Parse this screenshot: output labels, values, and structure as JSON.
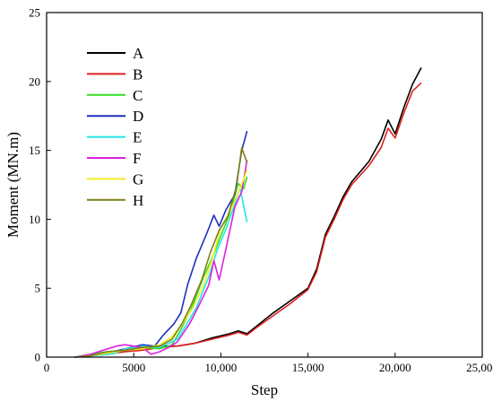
{
  "chart_data": {
    "type": "line",
    "title": "",
    "xlabel": "Step",
    "ylabel": "Moment (MN.m)",
    "xlim": [
      0,
      25000
    ],
    "ylim": [
      0,
      25
    ],
    "x_ticks": [
      0,
      5000,
      10000,
      15000,
      20000,
      25000
    ],
    "x_tick_labels": [
      "0",
      "5000",
      "10,000",
      "15,000",
      "20,000",
      "25,000"
    ],
    "y_ticks": [
      0,
      5,
      10,
      15,
      20,
      25
    ],
    "y_tick_labels": [
      "0",
      "5",
      "10",
      "15",
      "20",
      "25"
    ],
    "grid": false,
    "legend_position": "top-left",
    "series": [
      {
        "name": "A",
        "color": "#000000",
        "points": [
          [
            1600,
            0
          ],
          [
            2500,
            0.1
          ],
          [
            3500,
            0.3
          ],
          [
            4500,
            0.5
          ],
          [
            5500,
            0.6
          ],
          [
            6500,
            0.8
          ],
          [
            7500,
            0.8
          ],
          [
            8500,
            1.0
          ],
          [
            9500,
            1.4
          ],
          [
            10500,
            1.7
          ],
          [
            11000,
            1.9
          ],
          [
            11500,
            1.7
          ],
          [
            12000,
            2.2
          ],
          [
            13000,
            3.2
          ],
          [
            14000,
            4.1
          ],
          [
            15000,
            5.0
          ],
          [
            15500,
            6.4
          ],
          [
            16000,
            8.9
          ],
          [
            16500,
            10.2
          ],
          [
            17000,
            11.6
          ],
          [
            17500,
            12.7
          ],
          [
            18500,
            14.2
          ],
          [
            19200,
            15.8
          ],
          [
            19600,
            17.2
          ],
          [
            20000,
            16.2
          ],
          [
            20500,
            18.1
          ],
          [
            21000,
            19.8
          ],
          [
            21500,
            21.0
          ]
        ]
      },
      {
        "name": "B",
        "color": "#e02020",
        "points": [
          [
            1600,
            0
          ],
          [
            2500,
            0.1
          ],
          [
            3500,
            0.2
          ],
          [
            4500,
            0.4
          ],
          [
            5500,
            0.5
          ],
          [
            6500,
            0.7
          ],
          [
            7500,
            0.8
          ],
          [
            8500,
            1.0
          ],
          [
            9500,
            1.3
          ],
          [
            10500,
            1.6
          ],
          [
            11000,
            1.8
          ],
          [
            11500,
            1.6
          ],
          [
            12000,
            2.1
          ],
          [
            13000,
            3.0
          ],
          [
            14000,
            3.9
          ],
          [
            15000,
            4.9
          ],
          [
            15500,
            6.2
          ],
          [
            16000,
            8.7
          ],
          [
            16500,
            10.0
          ],
          [
            17000,
            11.4
          ],
          [
            17500,
            12.5
          ],
          [
            18500,
            13.9
          ],
          [
            19200,
            15.2
          ],
          [
            19600,
            16.6
          ],
          [
            20000,
            15.9
          ],
          [
            20500,
            17.7
          ],
          [
            21000,
            19.3
          ],
          [
            21500,
            19.9
          ]
        ]
      },
      {
        "name": "C",
        "color": "#33dd22",
        "points": [
          [
            1600,
            0
          ],
          [
            2500,
            0.2
          ],
          [
            3500,
            0.4
          ],
          [
            4500,
            0.5
          ],
          [
            5500,
            0.7
          ],
          [
            6500,
            0.6
          ],
          [
            7200,
            0.9
          ],
          [
            7700,
            2.0
          ],
          [
            8300,
            3.5
          ],
          [
            9000,
            5.8
          ],
          [
            9500,
            7.2
          ],
          [
            10000,
            8.8
          ],
          [
            10500,
            10.4
          ],
          [
            11000,
            12.6
          ],
          [
            11300,
            12.2
          ],
          [
            11500,
            13.1
          ]
        ]
      },
      {
        "name": "D",
        "color": "#1f2fc0",
        "points": [
          [
            1600,
            0
          ],
          [
            2500,
            0.1
          ],
          [
            3500,
            0.3
          ],
          [
            4500,
            0.6
          ],
          [
            5500,
            0.9
          ],
          [
            6200,
            0.8
          ],
          [
            6700,
            1.6
          ],
          [
            7300,
            2.4
          ],
          [
            7700,
            3.2
          ],
          [
            8100,
            5.3
          ],
          [
            8600,
            7.2
          ],
          [
            9200,
            9.0
          ],
          [
            9600,
            10.3
          ],
          [
            9900,
            9.5
          ],
          [
            10300,
            10.7
          ],
          [
            10800,
            11.8
          ],
          [
            11200,
            15.0
          ],
          [
            11500,
            16.4
          ]
        ]
      },
      {
        "name": "E",
        "color": "#22e6e6",
        "points": [
          [
            1600,
            0
          ],
          [
            2500,
            0.1
          ],
          [
            3500,
            0.2
          ],
          [
            4000,
            0.3
          ],
          [
            4500,
            0.6
          ],
          [
            5500,
            0.8
          ],
          [
            6500,
            0.7
          ],
          [
            7500,
            1.3
          ],
          [
            8000,
            2.3
          ],
          [
            8600,
            3.6
          ],
          [
            9300,
            5.8
          ],
          [
            9800,
            7.8
          ],
          [
            10300,
            9.3
          ],
          [
            10800,
            11.1
          ],
          [
            11100,
            12.3
          ],
          [
            11300,
            11.0
          ],
          [
            11500,
            9.8
          ]
        ]
      },
      {
        "name": "F",
        "color": "#dd22dd",
        "points": [
          [
            1600,
            0
          ],
          [
            2500,
            0.2
          ],
          [
            3500,
            0.6
          ],
          [
            4000,
            0.8
          ],
          [
            4500,
            0.9
          ],
          [
            5500,
            0.7
          ],
          [
            6000,
            0.2
          ],
          [
            6500,
            0.4
          ],
          [
            7000,
            0.7
          ],
          [
            7500,
            1.1
          ],
          [
            8200,
            2.4
          ],
          [
            8800,
            3.9
          ],
          [
            9300,
            5.2
          ],
          [
            9600,
            7.0
          ],
          [
            9900,
            5.6
          ],
          [
            10300,
            7.9
          ],
          [
            10800,
            10.9
          ],
          [
            11200,
            12.0
          ],
          [
            11500,
            14.3
          ]
        ]
      },
      {
        "name": "G",
        "color": "#f2ee22",
        "points": [
          [
            1600,
            0
          ],
          [
            2500,
            0.1
          ],
          [
            3500,
            0.3
          ],
          [
            4500,
            0.5
          ],
          [
            5500,
            0.6
          ],
          [
            6500,
            0.9
          ],
          [
            7200,
            1.5
          ],
          [
            7800,
            2.4
          ],
          [
            8400,
            3.6
          ],
          [
            9000,
            5.2
          ],
          [
            9500,
            7.1
          ],
          [
            10000,
            9.4
          ],
          [
            10500,
            10.5
          ],
          [
            11000,
            11.9
          ],
          [
            11300,
            12.9
          ],
          [
            11500,
            13.6
          ]
        ]
      },
      {
        "name": "H",
        "color": "#7f7f1a",
        "points": [
          [
            1600,
            0
          ],
          [
            2500,
            0.1
          ],
          [
            3500,
            0.4
          ],
          [
            4500,
            0.5
          ],
          [
            5500,
            0.7
          ],
          [
            6500,
            0.8
          ],
          [
            7200,
            1.3
          ],
          [
            7800,
            2.5
          ],
          [
            8300,
            3.8
          ],
          [
            8900,
            5.6
          ],
          [
            9400,
            7.6
          ],
          [
            9900,
            9.2
          ],
          [
            10400,
            10.2
          ],
          [
            10900,
            12.4
          ],
          [
            11200,
            15.2
          ],
          [
            11500,
            14.1
          ]
        ]
      }
    ]
  }
}
